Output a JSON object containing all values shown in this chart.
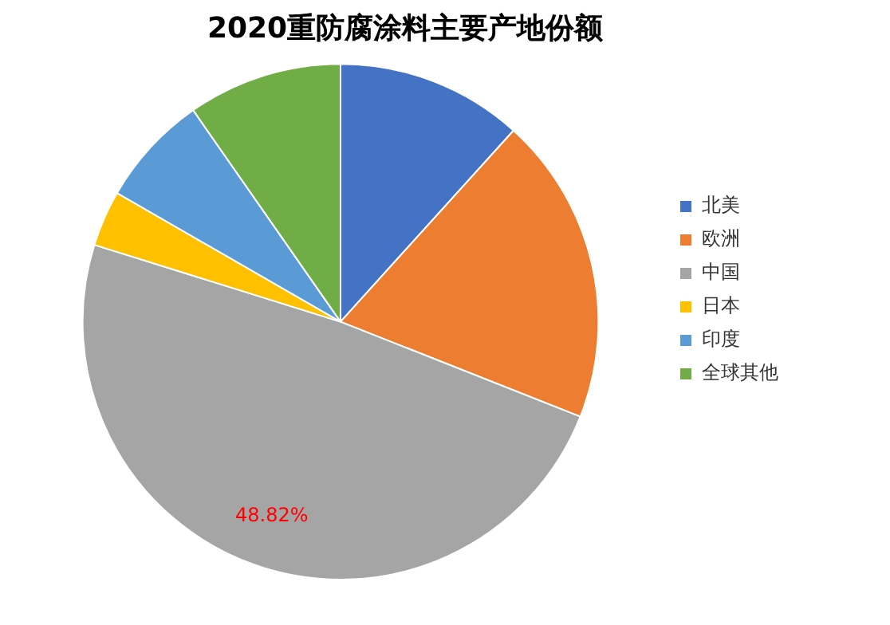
{
  "chart_data": {
    "type": "pie",
    "title": "2020重防腐涂料主要产地份额",
    "categories": [
      "北美",
      "欧洲",
      "中国",
      "日本",
      "印度",
      "全球其他"
    ],
    "values": [
      11.7,
      19.3,
      48.82,
      3.5,
      7.0,
      9.68
    ],
    "colors": [
      "#4472c4",
      "#ed7d31",
      "#a5a5a5",
      "#ffc000",
      "#5b9bd5",
      "#70ad47"
    ],
    "value_labels": [
      null,
      null,
      "48.82%",
      null,
      null,
      null
    ],
    "legend": "right"
  }
}
